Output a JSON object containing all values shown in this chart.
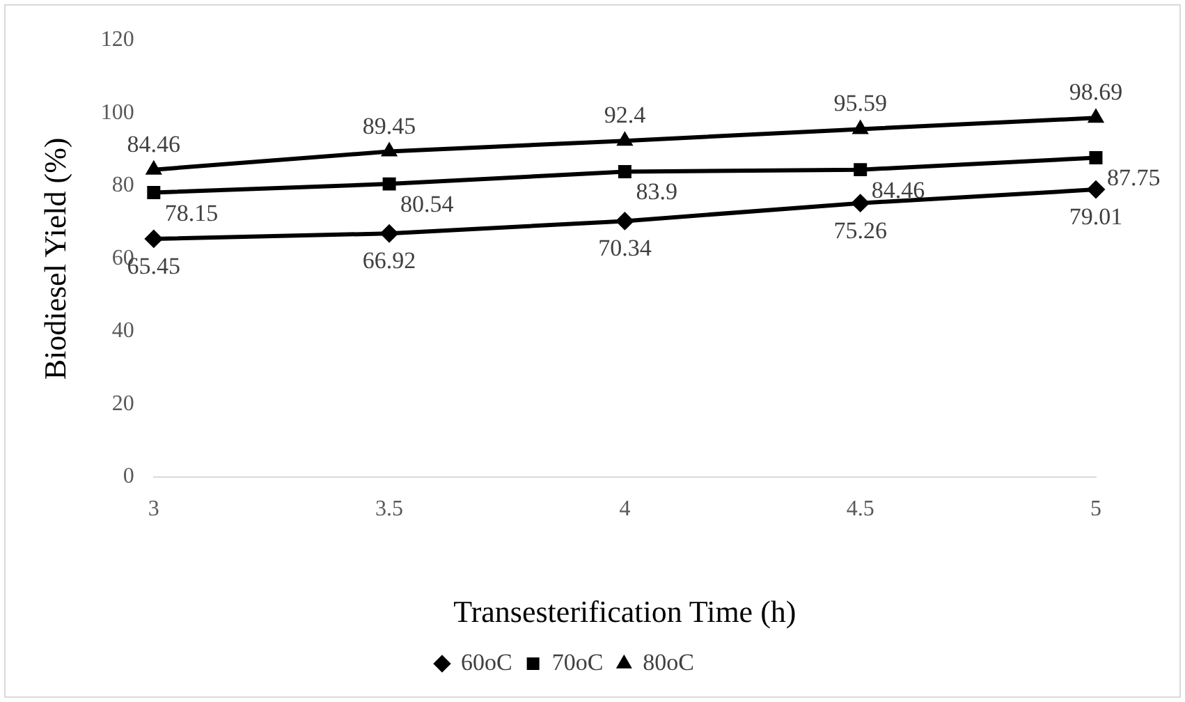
{
  "chart_data": {
    "type": "line",
    "xlabel": "Transesterification Time (h)",
    "ylabel": "Biodiesel Yield (%)",
    "categories": [
      "3",
      "3.5",
      "4",
      "4.5",
      "5"
    ],
    "ylim": [
      0,
      120
    ],
    "yticks": [
      0,
      20,
      40,
      60,
      80,
      100,
      120
    ],
    "grid": false,
    "legend": "bottom",
    "data_labels": true,
    "line_style": "solid",
    "series": [
      {
        "name": "60oC",
        "color": "#000000",
        "marker": "diamond",
        "values": [
          65.45,
          66.92,
          70.34,
          75.26,
          79.01
        ]
      },
      {
        "name": "70oC",
        "color": "#000000",
        "marker": "square",
        "values": [
          78.15,
          80.54,
          83.9,
          84.46,
          87.75
        ]
      },
      {
        "name": "80oC",
        "color": "#000000",
        "marker": "triangle",
        "values": [
          84.46,
          89.45,
          92.4,
          95.59,
          98.69
        ]
      }
    ]
  }
}
